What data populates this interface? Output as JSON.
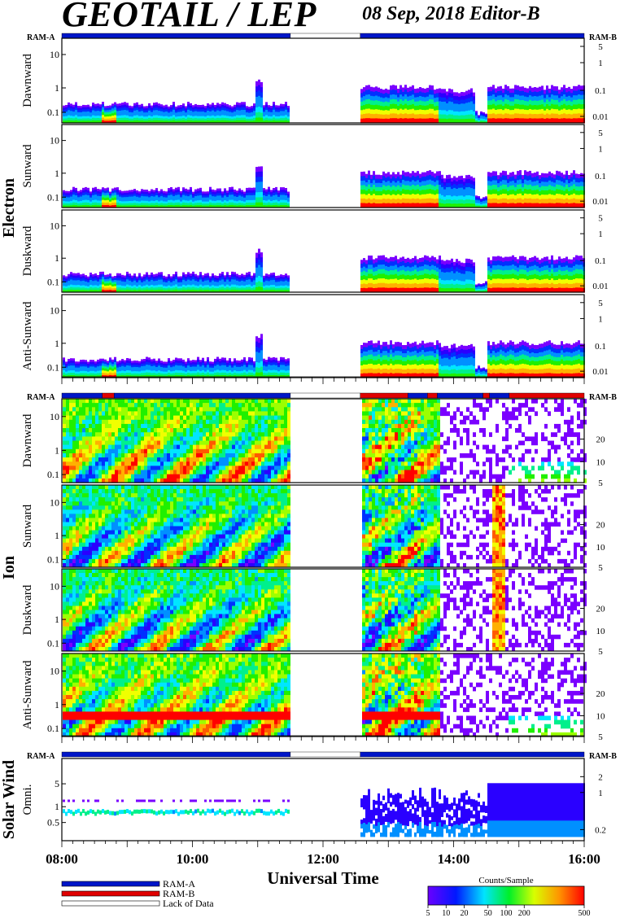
{
  "header": {
    "title": "GEOTAIL / LEP",
    "subtitle": "08 Sep, 2018   Editor-B"
  },
  "colors": {
    "ram_a": "#0016c8",
    "ram_b": "#e00000",
    "lack_of_data": "#ffffff"
  },
  "chart_data": {
    "type": "heatmap",
    "xlabel": "Universal Time",
    "x_ticks": [
      "08:00",
      "10:00",
      "12:00",
      "14:00",
      "16:00"
    ],
    "x_range_hours": [
      8,
      16
    ],
    "data_gaps_hours": [
      [
        11.48,
        12.57
      ]
    ],
    "mode_segments": [
      {
        "group": "Electron",
        "segments": [
          [
            "RAM-A",
            8.0,
            11.5
          ],
          [
            "Lack of Data",
            11.5,
            12.57
          ],
          [
            "RAM-A",
            12.57,
            16.0
          ]
        ]
      },
      {
        "group": "Ion",
        "segments": [
          [
            "RAM-A",
            8.0,
            8.62
          ],
          [
            "RAM-B",
            8.62,
            8.8
          ],
          [
            "RAM-A",
            8.8,
            11.5
          ],
          [
            "Lack of Data",
            11.5,
            12.57
          ],
          [
            "RAM-B",
            12.57,
            13.3
          ],
          [
            "RAM-A",
            13.3,
            13.6
          ],
          [
            "RAM-B",
            13.6,
            13.75
          ],
          [
            "RAM-A",
            13.75,
            14.45
          ],
          [
            "RAM-B",
            14.45,
            14.55
          ],
          [
            "RAM-A",
            14.55,
            14.85
          ],
          [
            "RAM-B",
            14.85,
            16.0
          ]
        ]
      },
      {
        "group": "Solar Wind",
        "segments": [
          [
            "RAM-A",
            8.0,
            11.5
          ],
          [
            "Lack of Data",
            11.5,
            12.57
          ],
          [
            "RAM-A",
            12.57,
            16.0
          ]
        ]
      }
    ],
    "groups": [
      {
        "name": "Electron",
        "left_ticks": [
          "10",
          "1",
          "0.1"
        ],
        "right_ticks": [
          "5",
          "1",
          "0.1",
          "0.01"
        ],
        "panels": [
          "Dawnward",
          "Sunward",
          "Duskward",
          "Anti-Sunward"
        ]
      },
      {
        "name": "Ion",
        "left_ticks": [
          "10",
          "1",
          "0.1"
        ],
        "right_ticks": [
          "20",
          "10",
          "5"
        ],
        "panels": [
          "Dawnward",
          "Sunward",
          "Duskward",
          "Anti-Sunward"
        ]
      },
      {
        "name": "Solar Wind",
        "left_ticks": [
          "5",
          "1",
          "0.5"
        ],
        "right_ticks": [
          "2",
          "1",
          "0.2"
        ],
        "panels": [
          "Omni."
        ]
      }
    ],
    "colorbar": {
      "label": "Counts/Sample",
      "ticks": [
        "5",
        "10",
        "20",
        "50",
        "100",
        "200",
        "500"
      ]
    },
    "legend": [
      {
        "label": "RAM-A"
      },
      {
        "label": "RAM-B"
      },
      {
        "label": "Lack of Data"
      }
    ]
  }
}
